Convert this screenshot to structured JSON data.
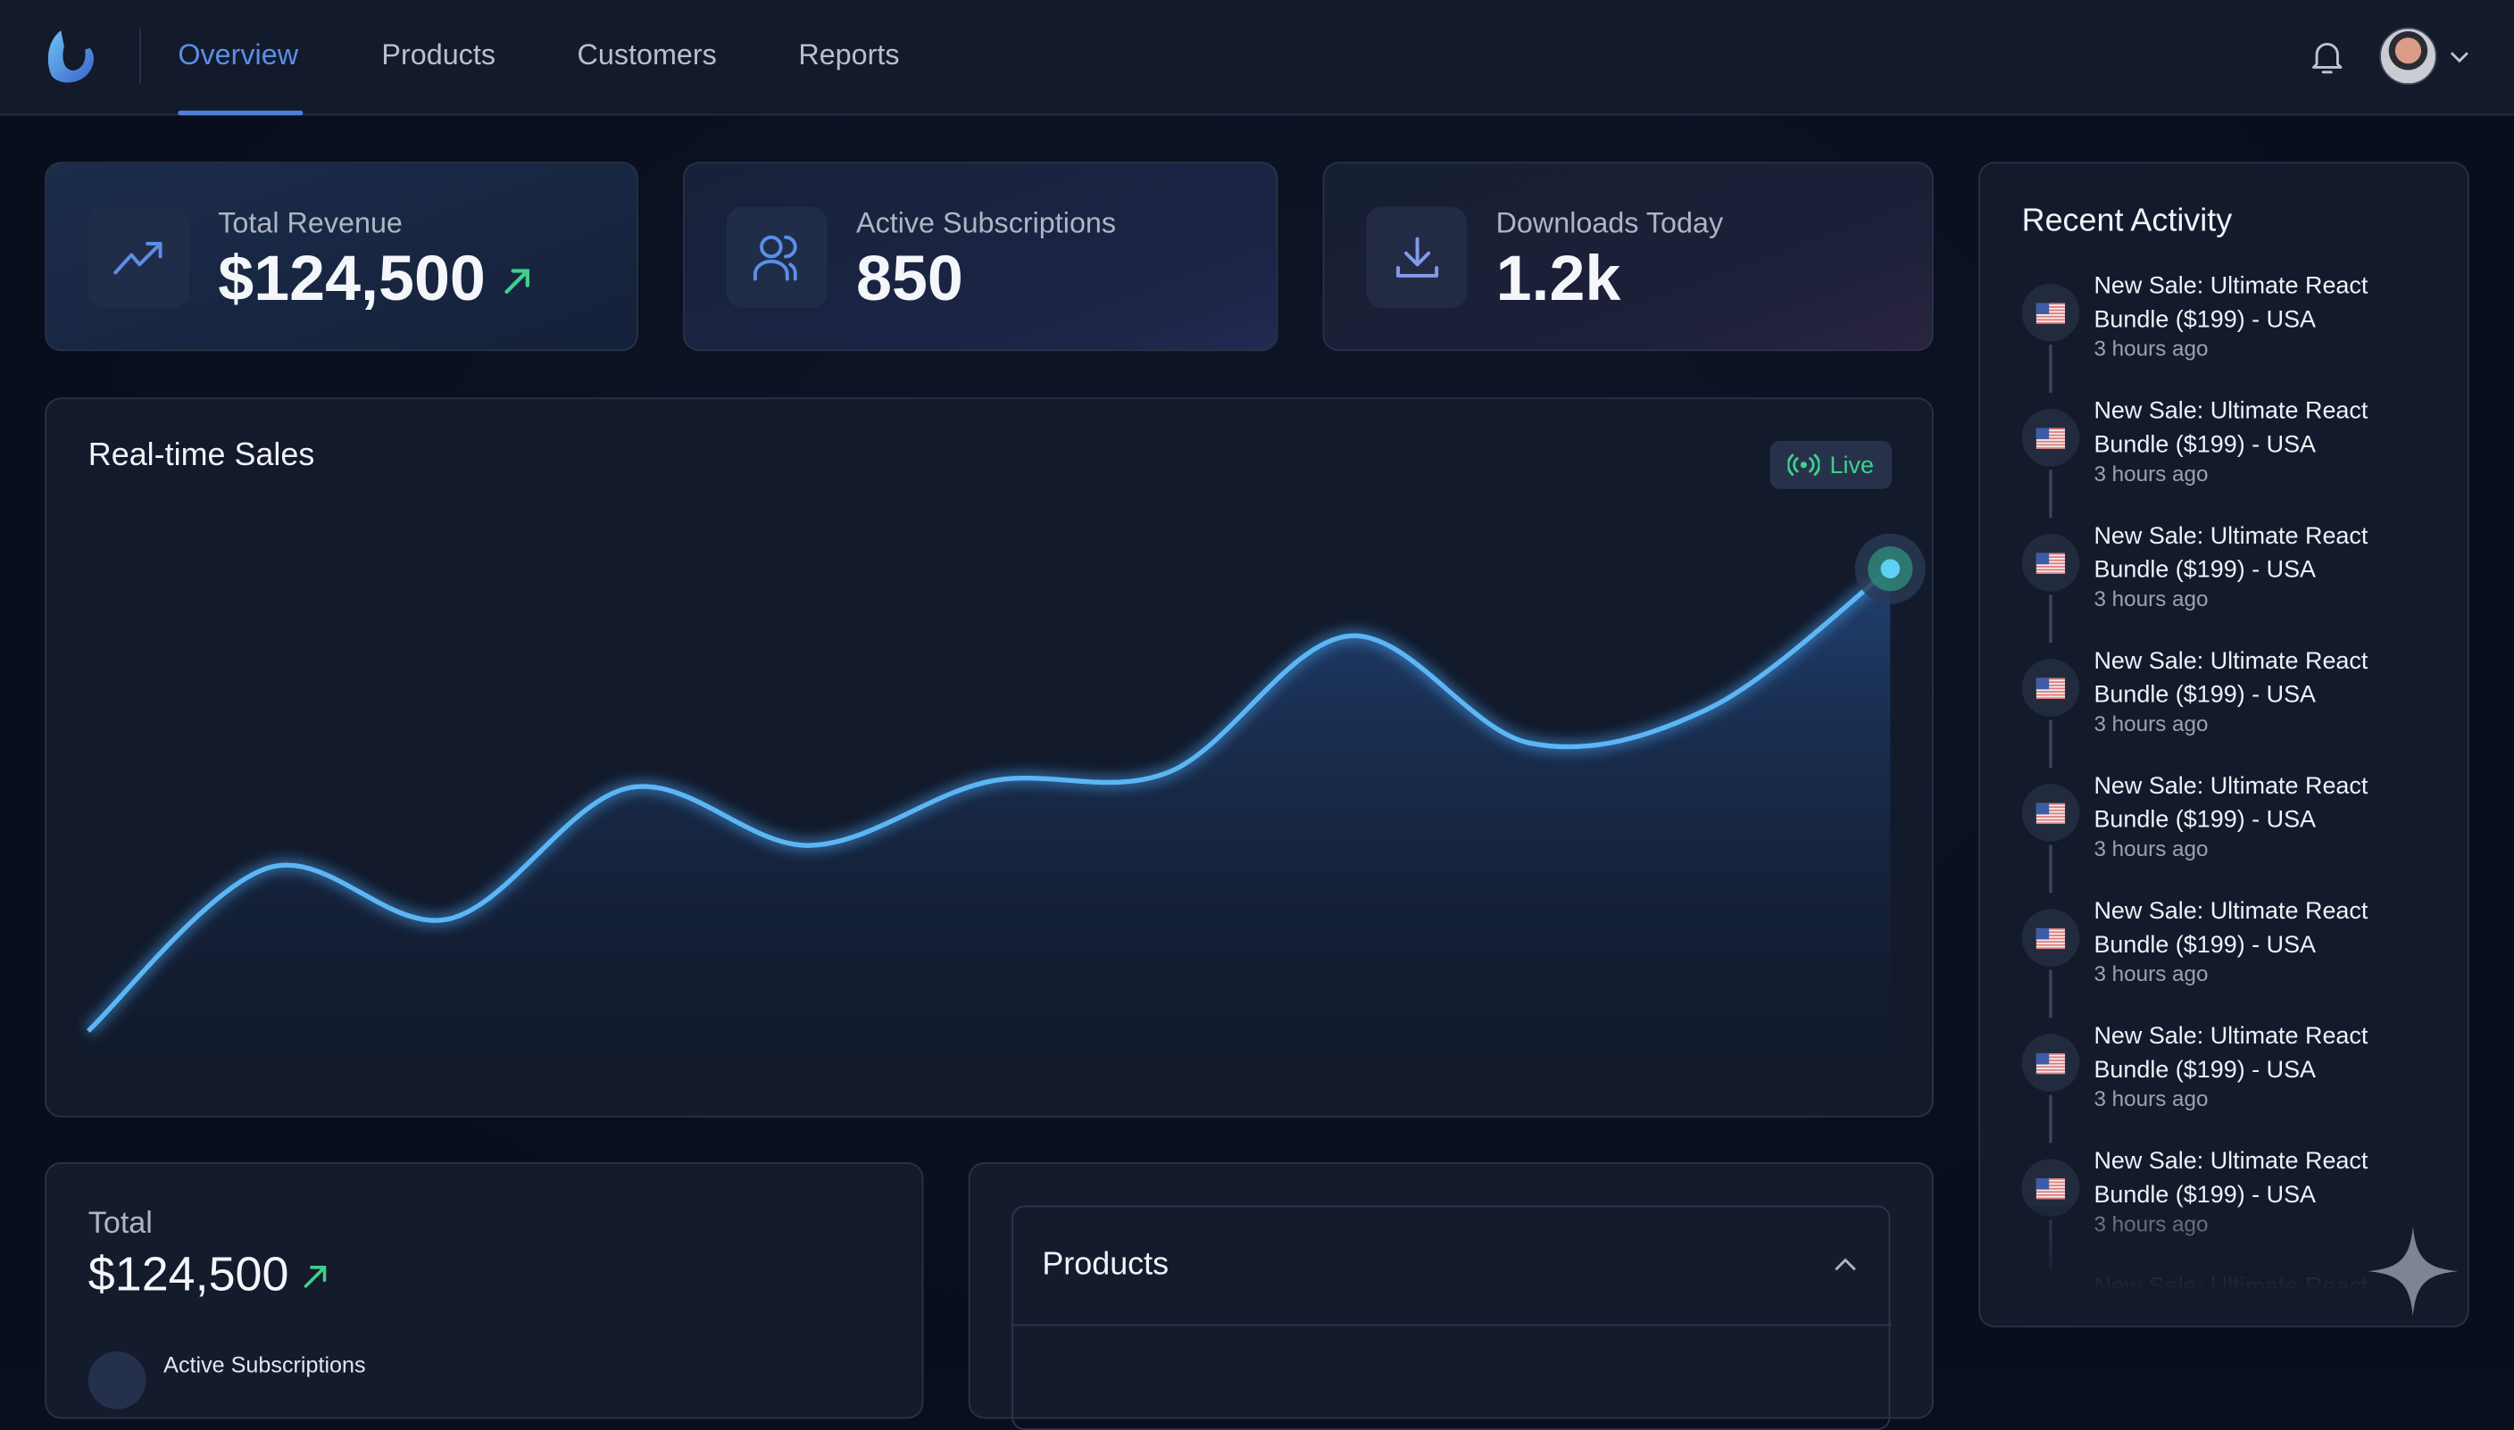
{
  "nav": {
    "tabs": [
      {
        "label": "Overview",
        "active": true
      },
      {
        "label": "Products",
        "active": false
      },
      {
        "label": "Customers",
        "active": false
      },
      {
        "label": "Reports",
        "active": false
      }
    ]
  },
  "stats": [
    {
      "label": "Total Revenue",
      "value": "$124,500",
      "icon": "trending-up-icon",
      "trend": "up"
    },
    {
      "label": "Active Subscriptions",
      "value": "850",
      "icon": "users-icon"
    },
    {
      "label": "Downloads Today",
      "value": "1.2k",
      "icon": "download-icon"
    }
  ],
  "sales": {
    "title": "Real-time Sales",
    "live_label": "Live"
  },
  "chart_data": {
    "type": "area",
    "title": "Real-time Sales",
    "x": [
      0,
      1,
      2,
      3,
      4,
      5,
      6,
      7,
      8,
      9,
      10
    ],
    "values": [
      55,
      157,
      125,
      207,
      171,
      211,
      217,
      302,
      235,
      257,
      344
    ],
    "ylim": [
      0,
      450
    ],
    "grid": false,
    "xlabel": "",
    "ylabel": ""
  },
  "summary": {
    "label": "Total",
    "value": "$124,500",
    "sub_label": "Active Subscriptions"
  },
  "products_panel": {
    "title": "Products"
  },
  "activity": {
    "title": "Recent Activity",
    "items": [
      {
        "text": "New Sale: Ultimate React Bundle ($199) - USA",
        "time": "3 hours ago"
      },
      {
        "text": "New Sale: Ultimate React Bundle ($199) - USA",
        "time": "3 hours ago"
      },
      {
        "text": "New Sale: Ultimate React Bundle ($199) - USA",
        "time": "3 hours ago"
      },
      {
        "text": "New Sale: Ultimate React Bundle ($199) - USA",
        "time": "3 hours ago"
      },
      {
        "text": "New Sale: Ultimate React Bundle ($199) - USA",
        "time": "3 hours ago"
      },
      {
        "text": "New Sale: Ultimate React Bundle ($199) - USA",
        "time": "3 hours ago"
      },
      {
        "text": "New Sale: Ultimate React Bundle ($199) - USA",
        "time": "3 hours ago"
      },
      {
        "text": "New Sale: Ultimate React Bundle ($199) - USA",
        "time": "3 hours ago"
      },
      {
        "text": "New Sale: Ultimate React",
        "time": ""
      }
    ]
  },
  "colors": {
    "accent": "#5b8ee6",
    "positive": "#3ecf8e",
    "line": "#5cc8f5",
    "bg": "#0a0f1f"
  }
}
